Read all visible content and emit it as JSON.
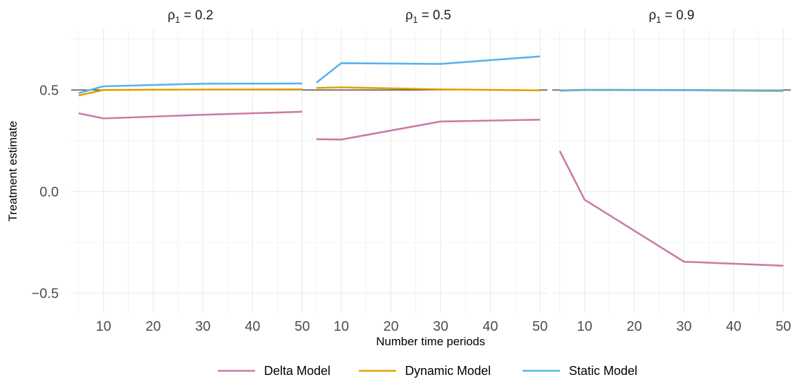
{
  "chart_data": {
    "type": "line",
    "layout": "facet-row",
    "ylabel": "Treatment estimate",
    "xlabel": "Number time periods",
    "ylim": [
      -0.6,
      0.8
    ],
    "xlim": [
      3.5,
      51.5
    ],
    "yticks": [
      -0.5,
      0.0,
      0.5
    ],
    "ytick_labels": [
      "−0.5",
      "0.0",
      "0.5"
    ],
    "xticks": [
      10,
      20,
      30,
      40,
      50
    ],
    "xtick_labels": [
      "10",
      "20",
      "30",
      "40",
      "50"
    ],
    "reference_line": 0.5,
    "grid": true,
    "legend_position": "bottom",
    "series_styles": [
      {
        "name": "Delta Model",
        "color": "#CC79A7"
      },
      {
        "name": "Dynamic Model",
        "color": "#E69F00"
      },
      {
        "name": "Static Model",
        "color": "#56B4E9"
      }
    ],
    "panels": [
      {
        "title_symbol": "ρ",
        "title_subscript": "1",
        "title_value": " = 0.2",
        "x": [
          5,
          10,
          30,
          50
        ],
        "series": [
          {
            "name": "Delta Model",
            "values": [
              0.385,
              0.36,
              0.378,
              0.393
            ]
          },
          {
            "name": "Dynamic Model",
            "values": [
              0.473,
              0.5,
              0.502,
              0.503
            ]
          },
          {
            "name": "Static Model",
            "values": [
              0.485,
              0.518,
              0.531,
              0.532
            ]
          }
        ]
      },
      {
        "title_symbol": "ρ",
        "title_subscript": "1",
        "title_value": " = 0.5",
        "x": [
          5,
          10,
          30,
          50
        ],
        "series": [
          {
            "name": "Delta Model",
            "values": [
              0.258,
              0.256,
              0.345,
              0.354
            ]
          },
          {
            "name": "Dynamic Model",
            "values": [
              0.51,
              0.513,
              0.503,
              0.498
            ]
          },
          {
            "name": "Static Model",
            "values": [
              0.536,
              0.632,
              0.628,
              0.665
            ]
          }
        ]
      },
      {
        "title_symbol": "ρ",
        "title_subscript": "1",
        "title_value": " = 0.9",
        "x": [
          5,
          10,
          30,
          50
        ],
        "series": [
          {
            "name": "Delta Model",
            "values": [
              0.2,
              -0.04,
              -0.345,
              -0.365
            ]
          },
          {
            "name": "Dynamic Model",
            "values": [
              0.496,
              0.5,
              0.499,
              0.495
            ]
          },
          {
            "name": "Static Model",
            "values": [
              0.498,
              0.501,
              0.5,
              0.498
            ]
          }
        ]
      }
    ]
  }
}
